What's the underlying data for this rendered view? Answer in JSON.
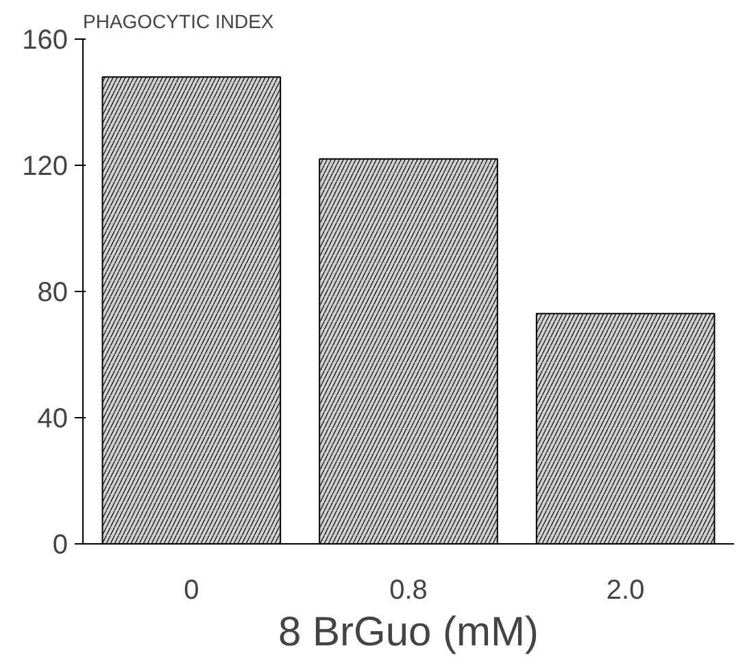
{
  "chart_data": {
    "type": "bar",
    "ylabel": "PHAGOCYTIC INDEX",
    "xlabel": "8 BrGuo (mM)",
    "categories": [
      "0",
      "0.8",
      "2.0"
    ],
    "values": [
      148,
      122,
      73
    ],
    "color": "#a0a0a0",
    "ylim": [
      0,
      160
    ],
    "yticks": [
      0,
      40,
      80,
      120,
      160
    ],
    "grid": false
  }
}
